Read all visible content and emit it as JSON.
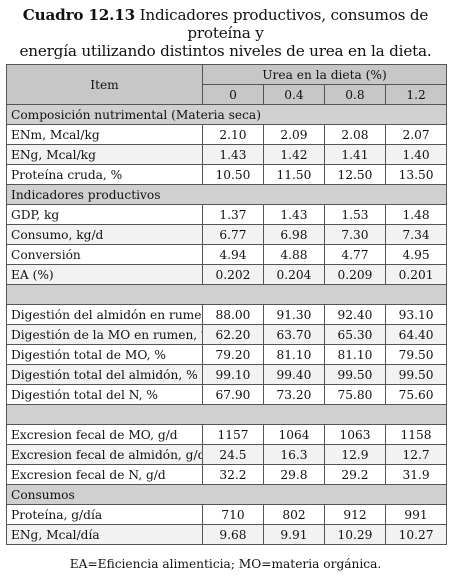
{
  "caption": {
    "number": "Cuadro 12.13",
    "text_line1": " Indicadores productivos, consumos de proteína y",
    "text_line2": "energía utilizando distintos niveles de urea en la dieta."
  },
  "header": {
    "item": "Item",
    "group": "Urea en la dieta (%)",
    "levels": [
      "0",
      "0.4",
      "0.8",
      "1.2"
    ]
  },
  "rows": [
    {
      "type": "section",
      "label": "Composición  nutrimental (Materia seca)"
    },
    {
      "type": "data",
      "label": "ENm, Mcal/kg",
      "values": [
        "2.10",
        "2.09",
        "2.08",
        "2.07"
      ]
    },
    {
      "type": "data",
      "label": "ENg, Mcal/kg",
      "values": [
        "1.43",
        "1.42",
        "1.41",
        "1.40"
      ]
    },
    {
      "type": "data",
      "label": "Proteína cruda, %",
      "values": [
        "10.50",
        "11.50",
        "12.50",
        "13.50"
      ]
    },
    {
      "type": "section",
      "label": "Indicadores productivos"
    },
    {
      "type": "data",
      "label": "GDP, kg",
      "values": [
        "1.37",
        "1.43",
        "1.53",
        "1.48"
      ]
    },
    {
      "type": "data",
      "label": "Consumo, kg/d",
      "values": [
        "6.77",
        "6.98",
        "7.30",
        "7.34"
      ]
    },
    {
      "type": "data",
      "label": "Conversión",
      "values": [
        "4.94",
        "4.88",
        "4.77",
        "4.95"
      ]
    },
    {
      "type": "data",
      "label": "EA (%)",
      "values": [
        "0.202",
        "0.204",
        "0.209",
        "0.201"
      ]
    },
    {
      "type": "spacer"
    },
    {
      "type": "data",
      "label": "Digestión del almidón en rumen, %",
      "values": [
        "88.00",
        "91.30",
        "92.40",
        "93.10"
      ]
    },
    {
      "type": "data",
      "label": "Digestión de la MO en rumen, %",
      "values": [
        "62.20",
        "63.70",
        "65.30",
        "64.40"
      ]
    },
    {
      "type": "data",
      "label": "Digestión total de MO, %",
      "values": [
        "79.20",
        "81.10",
        "81.10",
        "79.50"
      ]
    },
    {
      "type": "data",
      "label": "Digestión total del almidón, %",
      "values": [
        "99.10",
        "99.40",
        "99.50",
        "99.50"
      ]
    },
    {
      "type": "data",
      "label": "Digestión total del N, %",
      "values": [
        "67.90",
        "73.20",
        "75.80",
        "75.60"
      ]
    },
    {
      "type": "spacer"
    },
    {
      "type": "data",
      "label": "Excresion fecal de MO, g/d",
      "values": [
        "1157",
        "1064",
        "1063",
        "1158"
      ]
    },
    {
      "type": "data",
      "label": "Excresion fecal de almidón, g/d",
      "values": [
        "24.5",
        "16.3",
        "12.9",
        "12.7"
      ]
    },
    {
      "type": "data",
      "label": "Excresion fecal de N, g/d",
      "values": [
        "32.2",
        "29.8",
        "29.2",
        "31.9"
      ]
    },
    {
      "type": "section",
      "label": "Consumos"
    },
    {
      "type": "data",
      "label": "Proteína,  g/día",
      "values": [
        "710",
        "802",
        "912",
        "991"
      ]
    },
    {
      "type": "data",
      "label": "ENg,  Mcal/día",
      "values": [
        "9.68",
        "9.91",
        "10.29",
        "10.27"
      ]
    }
  ],
  "footnote": "EA=Eficiencia alimenticia; MO=materia orgánica."
}
